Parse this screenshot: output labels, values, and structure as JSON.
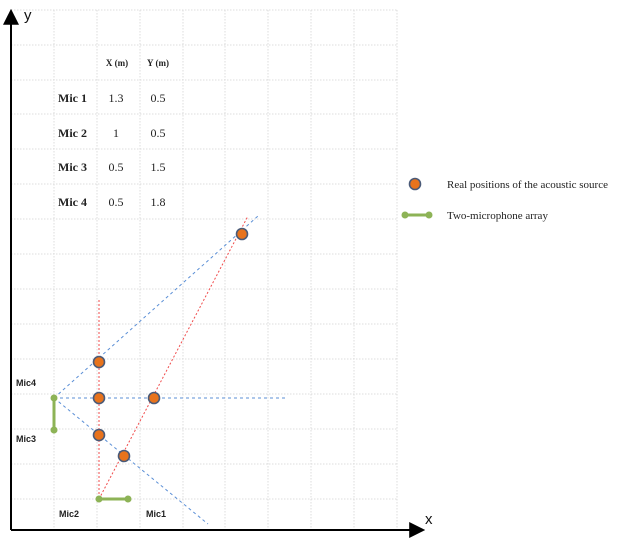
{
  "axes": {
    "x_label": "x",
    "y_label": "y"
  },
  "table": {
    "headers": [
      "X (m)",
      "Y (m)"
    ],
    "rows": [
      {
        "label": "Mic 1",
        "x": "1.3",
        "y": "0.5"
      },
      {
        "label": "Mic 2",
        "x": "1",
        "y": "0.5"
      },
      {
        "label": "Mic 3",
        "x": "0.5",
        "y": "1.5"
      },
      {
        "label": "Mic 4",
        "x": "0.5",
        "y": "1.8"
      }
    ]
  },
  "mic_labels": {
    "mic1": "Mic1",
    "mic2": "Mic2",
    "mic3": "Mic3",
    "mic4": "Mic4"
  },
  "legend": {
    "source": "Real positions of the acoustic source",
    "array": "Two-microphone array"
  },
  "colors": {
    "grid": "#d4d4d4",
    "axis": "#000000",
    "source_fill": "#e8731c",
    "source_stroke": "#4a5a78",
    "array": "#8db356",
    "red_line": "#f04b4b",
    "blue_line": "#5b8fd6"
  }
}
